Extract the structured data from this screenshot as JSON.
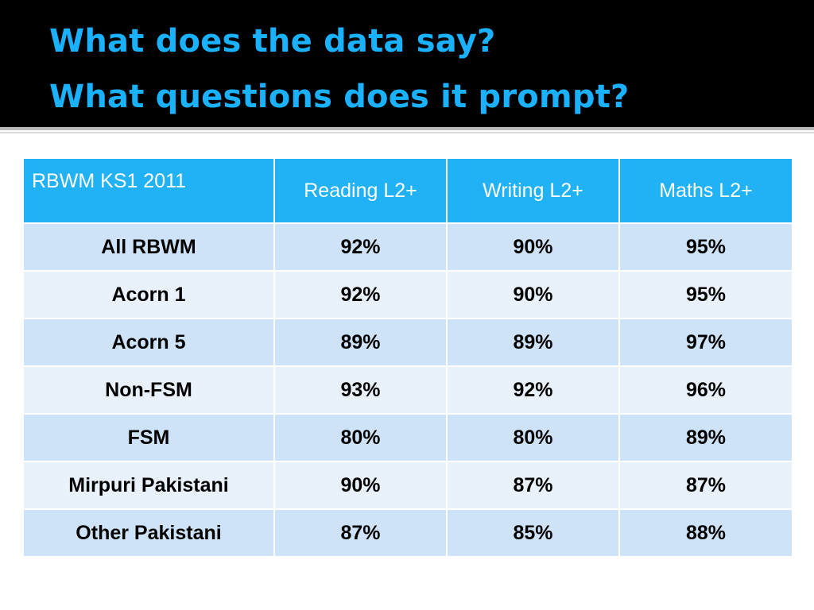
{
  "title": {
    "line1": "What does the data say?",
    "line2": "What questions does it prompt?"
  },
  "table": {
    "headers": [
      "RBWM KS1 2011",
      "Reading L2+",
      "Writing L2+",
      "Maths L2+"
    ],
    "rows": [
      [
        "All RBWM",
        "92%",
        "90%",
        "95%"
      ],
      [
        "Acorn 1",
        "92%",
        "90%",
        "95%"
      ],
      [
        "Acorn 5",
        "89%",
        "89%",
        "97%"
      ],
      [
        "Non-FSM",
        "93%",
        "92%",
        "96%"
      ],
      [
        "FSM",
        "80%",
        "80%",
        "89%"
      ],
      [
        "Mirpuri Pakistani",
        "90%",
        "87%",
        "87%"
      ],
      [
        "Other Pakistani",
        "87%",
        "85%",
        "88%"
      ]
    ]
  },
  "colors": {
    "title_background": "#000000",
    "title_text": "#1ab2ff",
    "header_fill": "#21b1f5",
    "row_fill_dark": "#cfe3f8",
    "row_fill_light": "#e9f1fb"
  }
}
